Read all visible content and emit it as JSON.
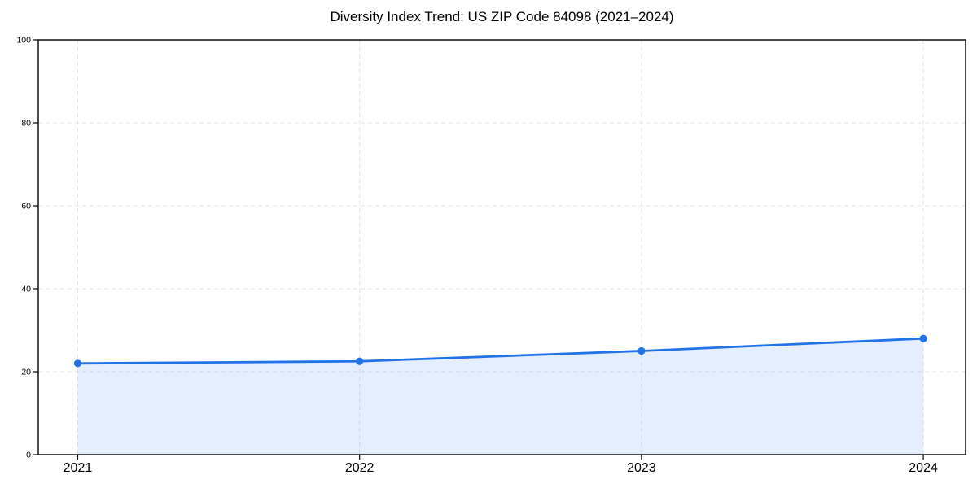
{
  "figure": {
    "background": "#ffffff",
    "text_color": "#000000",
    "spine_color": "#000000",
    "grid_color": "#e3e3e3"
  },
  "chart_data": {
    "type": "line",
    "title": "Diversity Index Trend: US ZIP Code 84098 (2021–2024)",
    "x": [
      2021,
      2022,
      2023,
      2024
    ],
    "series": [
      {
        "name": "Diversity Index",
        "values": [
          22,
          22.5,
          25,
          28
        ]
      }
    ],
    "xlabel": "",
    "ylabel": "",
    "xticks": [
      2021,
      2022,
      2023,
      2024
    ],
    "xtick_labels": [
      "2021",
      "2022",
      "2023",
      "2024"
    ],
    "yticks": [
      0,
      20,
      40,
      60,
      80,
      100
    ],
    "ytick_labels": [
      "0",
      "20",
      "40",
      "60",
      "80",
      "100"
    ],
    "xlim": [
      2020.86,
      2024.15
    ],
    "ylim": [
      0,
      100
    ],
    "grid": true,
    "grid_style": "dashed",
    "legend": "none",
    "line_color": "#2273e8",
    "marker": "circle",
    "marker_color": "#2273e8",
    "fill_color": "#2273e8",
    "fill_opacity": 0.12
  }
}
